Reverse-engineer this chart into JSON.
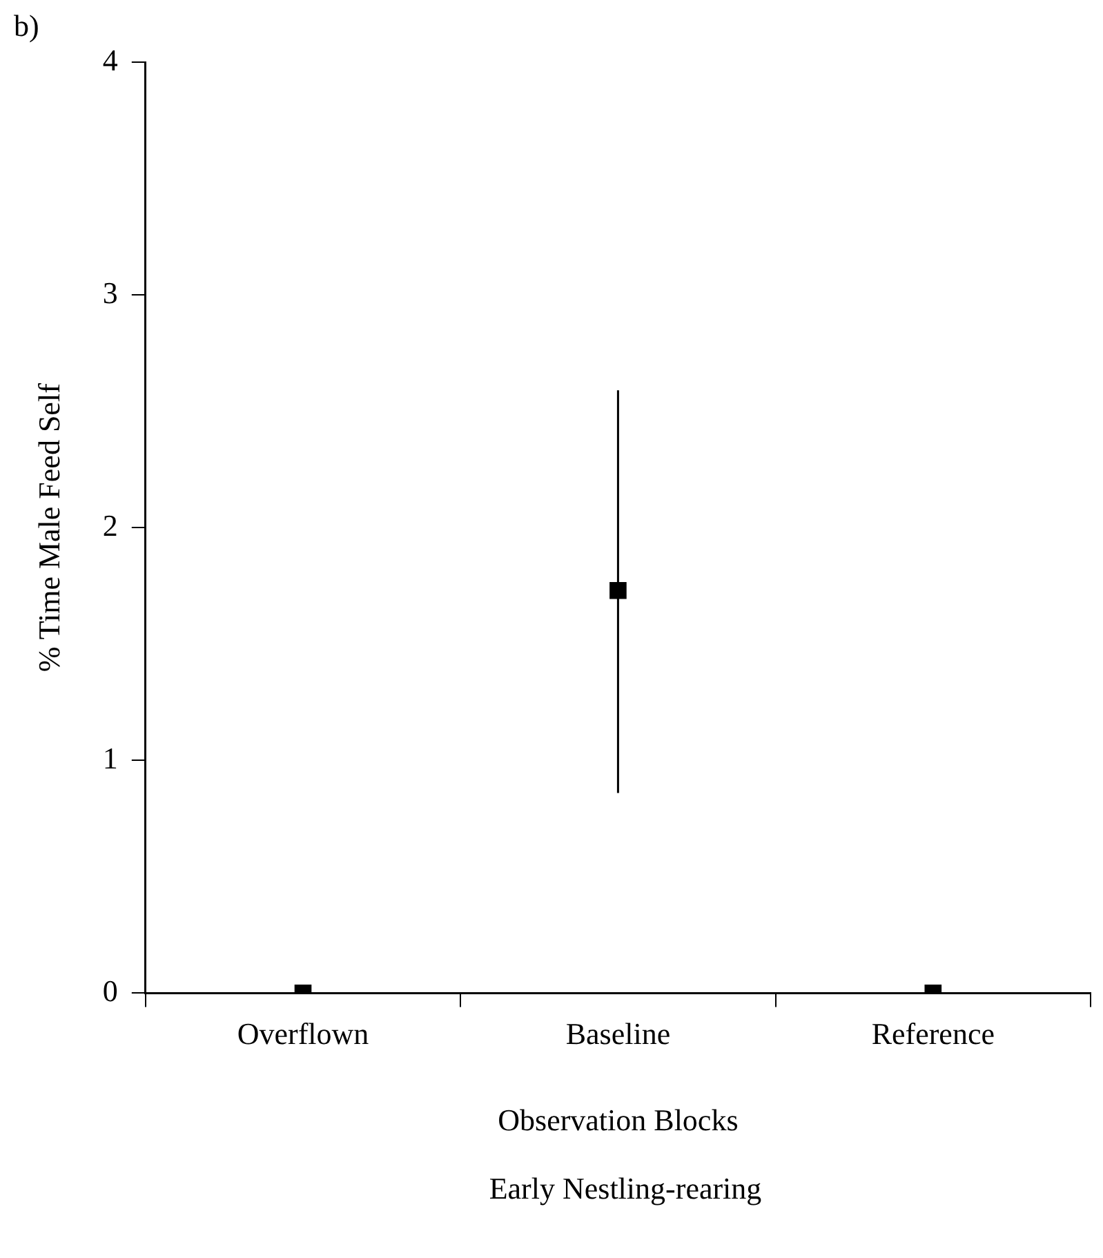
{
  "chart_data": {
    "type": "scatter",
    "xlabel": "Observation Blocks",
    "ylabel": "% Time Male Feed Self",
    "categories": [
      "Overflown",
      "Baseline",
      "Reference"
    ],
    "values": [
      0,
      1.73,
      0
    ],
    "errors": [
      null,
      [
        0.86,
        2.59
      ],
      null
    ],
    "color": "#000000",
    "marker": "square",
    "ylim": [
      0,
      4
    ],
    "yticks": [
      0,
      1,
      2,
      3,
      4
    ],
    "grid": false,
    "legend": false,
    "annotations": [
      "b)",
      "Early Nestling-rearing"
    ]
  }
}
